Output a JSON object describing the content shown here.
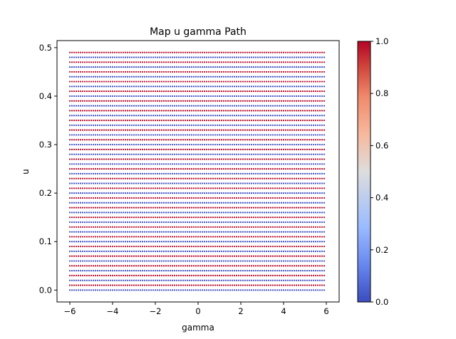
{
  "chart_data": {
    "type": "scatter",
    "title": "Map u gamma Path",
    "xlabel": "gamma",
    "ylabel": "u",
    "xlim": [
      -6.6,
      6.6
    ],
    "ylim": [
      -0.0245,
      0.5145
    ],
    "xticks": [
      -6,
      -4,
      -2,
      0,
      2,
      4,
      6
    ],
    "xtick_labels": [
      "−6",
      "−4",
      "−2",
      "0",
      "2",
      "4",
      "6"
    ],
    "yticks": [
      0.0,
      0.1,
      0.2,
      0.3,
      0.4,
      0.5
    ],
    "ytick_labels": [
      "0.0",
      "0.1",
      "0.2",
      "0.3",
      "0.4",
      "0.5"
    ],
    "grid": {
      "x_start": -6.0,
      "x_step": 0.1,
      "x_count": 120,
      "y_start": 0.0,
      "y_step": 0.01,
      "y_count": 50
    },
    "color_value_rule": "row parity: even u-rows = 0.0 (blue), odd u-rows = 1.0 (red)",
    "colormap": "coolwarm",
    "colorbar": {
      "range": [
        0.0,
        1.0
      ],
      "ticks": [
        0.0,
        0.2,
        0.4,
        0.6,
        0.8,
        1.0
      ],
      "tick_labels": [
        "0.0",
        "0.2",
        "0.4",
        "0.6",
        "0.8",
        "1.0"
      ],
      "colors": [
        "#3b4cc0",
        "#6788ee",
        "#9abbff",
        "#c9d7f0",
        "#edd1c2",
        "#f7a789",
        "#e26952",
        "#b40426"
      ]
    },
    "grid_lines": false,
    "legend": "none"
  }
}
